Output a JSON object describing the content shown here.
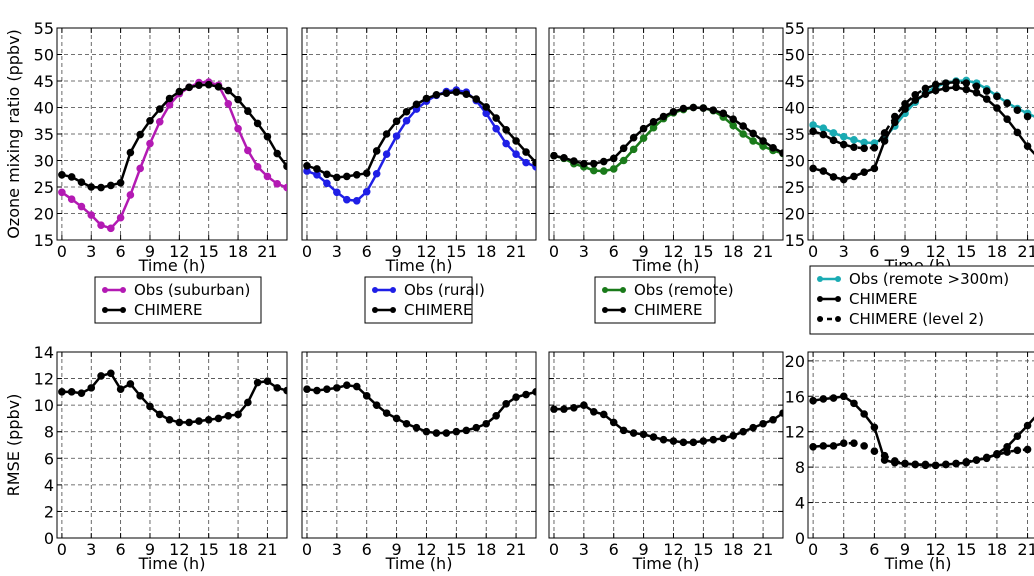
{
  "chart_data": [
    {
      "type": "line",
      "xlabel": "Time (h)",
      "ylabel": "Ozone mixing ratio (ppbv)",
      "xlim": [
        -0.5,
        23
      ],
      "ylim": [
        15,
        55
      ],
      "xticks": [
        0,
        3,
        6,
        9,
        12,
        15,
        18,
        21
      ],
      "yticks": [
        15,
        20,
        25,
        30,
        35,
        40,
        45,
        50,
        55
      ],
      "grid": true,
      "legend": "below",
      "series": [
        {
          "name": "Obs (suburban)",
          "color": "#b31ab3",
          "style": "solid",
          "x": [
            0,
            1,
            2,
            3,
            4,
            5,
            6,
            7,
            8,
            9,
            10,
            11,
            12,
            13,
            14,
            15,
            16,
            17,
            18,
            19,
            20,
            21,
            22,
            23
          ],
          "values": [
            24,
            22.7,
            21.3,
            19.7,
            17.8,
            17.2,
            19.2,
            23.5,
            28.5,
            33.2,
            37.3,
            40.5,
            42.6,
            43.8,
            44.7,
            44.8,
            44.2,
            40.7,
            36,
            31.9,
            28.8,
            27,
            25.6,
            24.9
          ]
        },
        {
          "name": "CHIMERE",
          "color": "#000000",
          "style": "solid",
          "x": [
            0,
            1,
            2,
            3,
            4,
            5,
            6,
            7,
            8,
            9,
            10,
            11,
            12,
            13,
            14,
            15,
            16,
            17,
            18,
            19,
            20,
            21,
            22,
            23
          ],
          "values": [
            27.3,
            26.9,
            25.9,
            25,
            24.9,
            25.3,
            25.8,
            31.5,
            34.9,
            37.5,
            39.7,
            41.7,
            43,
            43.8,
            44.2,
            44.3,
            43.9,
            43.2,
            41.5,
            39.3,
            37,
            34.5,
            31.3,
            28.9
          ]
        }
      ]
    },
    {
      "type": "line",
      "xlabel": "Time (h)",
      "ylabel": "",
      "xlim": [
        -0.5,
        23
      ],
      "ylim": [
        15,
        55
      ],
      "xticks": [
        0,
        3,
        6,
        9,
        12,
        15,
        18,
        21
      ],
      "grid": true,
      "legend": "below",
      "series": [
        {
          "name": "Obs (rural)",
          "color": "#1f1fe6",
          "style": "solid",
          "x": [
            0,
            1,
            2,
            3,
            4,
            5,
            6,
            7,
            8,
            9,
            10,
            11,
            12,
            13,
            14,
            15,
            16,
            17,
            18,
            19,
            20,
            21,
            22,
            23
          ],
          "values": [
            28,
            27.3,
            25.7,
            24,
            22.6,
            22.4,
            24.1,
            27.5,
            31.2,
            34.6,
            37.5,
            39.7,
            41.2,
            42.3,
            43,
            43.3,
            42.9,
            41.3,
            38.9,
            36,
            33.2,
            31.2,
            29.6,
            28.8
          ]
        },
        {
          "name": "CHIMERE",
          "color": "#000000",
          "style": "solid",
          "x": [
            0,
            1,
            2,
            3,
            4,
            5,
            6,
            7,
            8,
            9,
            10,
            11,
            12,
            13,
            14,
            15,
            16,
            17,
            18,
            19,
            20,
            21,
            22,
            23
          ],
          "values": [
            29,
            28.4,
            27.4,
            26.8,
            27,
            27.3,
            27.6,
            31.8,
            35,
            37.4,
            39.2,
            40.6,
            41.7,
            42.4,
            42.7,
            42.9,
            42.5,
            41.6,
            40.1,
            38,
            35.8,
            33.7,
            31.6,
            29.6
          ]
        }
      ]
    },
    {
      "type": "line",
      "xlabel": "Time (h)",
      "ylabel": "",
      "xlim": [
        -0.5,
        23
      ],
      "ylim": [
        15,
        55
      ],
      "xticks": [
        0,
        3,
        6,
        9,
        12,
        15,
        18,
        21
      ],
      "grid": true,
      "legend": "below",
      "series": [
        {
          "name": "Obs (remote)",
          "color": "#1a7a1a",
          "style": "solid",
          "x": [
            0,
            1,
            2,
            3,
            4,
            5,
            6,
            7,
            8,
            9,
            10,
            11,
            12,
            13,
            14,
            15,
            16,
            17,
            18,
            19,
            20,
            21,
            22,
            23
          ],
          "values": [
            30.9,
            30.4,
            29.4,
            28.8,
            28.1,
            28,
            28.4,
            30,
            32.1,
            34.2,
            36.2,
            37.9,
            39,
            39.6,
            40,
            39.9,
            39.4,
            38.2,
            36.6,
            35,
            33.7,
            32.7,
            31.9,
            31.3
          ]
        },
        {
          "name": "CHIMERE",
          "color": "#000000",
          "style": "solid",
          "x": [
            0,
            1,
            2,
            3,
            4,
            5,
            6,
            7,
            8,
            9,
            10,
            11,
            12,
            13,
            14,
            15,
            16,
            17,
            18,
            19,
            20,
            21,
            22,
            23
          ],
          "values": [
            30.9,
            30.5,
            29.9,
            29.4,
            29.4,
            29.8,
            30.4,
            32.3,
            34.3,
            36,
            37.3,
            38.3,
            39.2,
            39.8,
            40,
            39.9,
            39.5,
            38.9,
            37.8,
            36.5,
            35.1,
            33.7,
            32.4,
            31.4
          ]
        }
      ]
    },
    {
      "type": "line",
      "xlabel": "Time (h)",
      "ylabel": "",
      "xlim": [
        -0.5,
        23
      ],
      "ylim": [
        15,
        55
      ],
      "xticks": [
        0,
        3,
        6,
        9,
        12,
        15,
        18,
        21
      ],
      "yticks": [
        15,
        20,
        25,
        30,
        35,
        40,
        45,
        50,
        55
      ],
      "grid": true,
      "legend": "below",
      "series": [
        {
          "name": "Obs (remote >300m)",
          "color": "#1aabb3",
          "style": "solid",
          "x": [
            0,
            1,
            2,
            3,
            4,
            5,
            6,
            7,
            8,
            9,
            10,
            11,
            12,
            13,
            14,
            15,
            16,
            17,
            18,
            19,
            20,
            21,
            22,
            23
          ],
          "values": [
            36.7,
            36.1,
            35.2,
            34.5,
            33.9,
            33.4,
            33.3,
            34.3,
            36.5,
            38.9,
            41,
            42.7,
            43.9,
            44.6,
            45,
            45.1,
            44.6,
            43.5,
            42.2,
            40.9,
            39.8,
            38.9,
            38,
            37.2
          ]
        },
        {
          "name": "CHIMERE",
          "color": "#000000",
          "style": "solid",
          "x": [
            0,
            1,
            2,
            3,
            4,
            5,
            6,
            7,
            8,
            9,
            10,
            11,
            12,
            13,
            14,
            15,
            16,
            17,
            18,
            19,
            20,
            21,
            22,
            23
          ],
          "values": [
            28.5,
            28,
            26.9,
            26.4,
            27,
            27.8,
            28.5,
            33.7,
            37.2,
            39.7,
            41.4,
            42.5,
            43.2,
            43.6,
            43.8,
            43.4,
            42.8,
            41.6,
            39.9,
            37.8,
            35.3,
            32.7,
            30.6,
            29.2
          ]
        },
        {
          "name": "CHIMERE (level 2)",
          "color": "#000000",
          "style": "dashed",
          "x": [
            0,
            1,
            2,
            3,
            4,
            5,
            6,
            7,
            8,
            9,
            10,
            11,
            12,
            13,
            14,
            15,
            16,
            17,
            18,
            19,
            20,
            21,
            22,
            23
          ],
          "values": [
            35.5,
            34.9,
            33.8,
            33,
            32.5,
            32.3,
            32.4,
            35.2,
            38.3,
            40.7,
            42.4,
            43.6,
            44.3,
            44.6,
            44.8,
            44.6,
            44,
            43.1,
            42.1,
            40.8,
            39.5,
            38.3,
            37.3,
            36.5
          ]
        }
      ]
    },
    {
      "type": "line",
      "xlabel": "Time (h)",
      "ylabel": "RMSE (ppbv)",
      "xlim": [
        -0.5,
        23
      ],
      "ylim": [
        0,
        14
      ],
      "xticks": [
        0,
        3,
        6,
        9,
        12,
        15,
        18,
        21
      ],
      "yticks": [
        0,
        2,
        4,
        6,
        8,
        10,
        12,
        14
      ],
      "grid": true,
      "series": [
        {
          "name": "",
          "color": "#000000",
          "style": "solid",
          "x": [
            0,
            1,
            2,
            3,
            4,
            5,
            6,
            7,
            8,
            9,
            10,
            11,
            12,
            13,
            14,
            15,
            16,
            17,
            18,
            19,
            20,
            21,
            22,
            23
          ],
          "values": [
            11,
            11,
            10.9,
            11.3,
            12.2,
            12.4,
            11.2,
            11.6,
            10.7,
            9.9,
            9.3,
            8.9,
            8.7,
            8.7,
            8.8,
            8.9,
            9,
            9.2,
            9.3,
            10.2,
            11.7,
            11.8,
            11.3,
            11.1
          ]
        }
      ]
    },
    {
      "type": "line",
      "xlabel": "Time (h)",
      "ylabel": "",
      "xlim": [
        -0.5,
        23
      ],
      "ylim": [
        0,
        14
      ],
      "xticks": [
        0,
        3,
        6,
        9,
        12,
        15,
        18,
        21
      ],
      "grid": true,
      "series": [
        {
          "name": "",
          "color": "#000000",
          "style": "solid",
          "x": [
            0,
            1,
            2,
            3,
            4,
            5,
            6,
            7,
            8,
            9,
            10,
            11,
            12,
            13,
            14,
            15,
            16,
            17,
            18,
            19,
            20,
            21,
            22,
            23
          ],
          "values": [
            11.2,
            11.1,
            11.2,
            11.3,
            11.5,
            11.4,
            10.7,
            10,
            9.4,
            9,
            8.6,
            8.3,
            8,
            7.9,
            7.9,
            8,
            8.1,
            8.3,
            8.6,
            9.2,
            10.1,
            10.6,
            10.8,
            11
          ]
        }
      ]
    },
    {
      "type": "line",
      "xlabel": "Time (h)",
      "ylabel": "",
      "xlim": [
        -0.5,
        23
      ],
      "ylim": [
        0,
        14
      ],
      "xticks": [
        0,
        3,
        6,
        9,
        12,
        15,
        18,
        21
      ],
      "grid": true,
      "series": [
        {
          "name": "",
          "color": "#000000",
          "style": "solid",
          "x": [
            0,
            1,
            2,
            3,
            4,
            5,
            6,
            7,
            8,
            9,
            10,
            11,
            12,
            13,
            14,
            15,
            16,
            17,
            18,
            19,
            20,
            21,
            22,
            23
          ],
          "values": [
            9.7,
            9.7,
            9.8,
            10,
            9.5,
            9.3,
            8.7,
            8.1,
            7.9,
            7.8,
            7.6,
            7.4,
            7.3,
            7.2,
            7.2,
            7.3,
            7.4,
            7.5,
            7.7,
            8,
            8.3,
            8.6,
            8.9,
            9.4
          ]
        }
      ]
    },
    {
      "type": "line",
      "xlabel": "Time (h)",
      "ylabel": "",
      "xlim": [
        -0.5,
        23
      ],
      "ylim": [
        0,
        21
      ],
      "xticks": [
        0,
        3,
        6,
        9,
        12,
        15,
        18,
        21
      ],
      "yticks": [
        0,
        4,
        8,
        12,
        16,
        20
      ],
      "grid": true,
      "series": [
        {
          "name": "",
          "color": "#000000",
          "style": "solid",
          "x": [
            0,
            1,
            2,
            3,
            4,
            5,
            6,
            7,
            8,
            9,
            10,
            11,
            12,
            13,
            14,
            15,
            16,
            17,
            18,
            19,
            20,
            21,
            22,
            23
          ],
          "values": [
            15.5,
            15.7,
            15.8,
            16,
            15.2,
            14,
            12.5,
            8.8,
            8.5,
            8.4,
            8.3,
            8.2,
            8.2,
            8.3,
            8.4,
            8.5,
            8.8,
            9,
            9.5,
            10.3,
            11.5,
            12.7,
            14,
            15.2
          ]
        },
        {
          "name": "",
          "color": "#000000",
          "style": "dashed",
          "x": [
            0,
            1,
            2,
            3,
            4,
            5,
            6,
            7,
            8,
            9,
            10,
            11,
            12,
            13,
            14,
            15,
            16,
            17,
            18,
            19,
            20,
            21,
            22,
            23
          ],
          "values": [
            10.3,
            10.4,
            10.4,
            10.7,
            10.7,
            10.4,
            9.8,
            9.3,
            8.7,
            8.4,
            8.3,
            8.3,
            8.2,
            8.3,
            8.4,
            8.6,
            8.8,
            9.1,
            9.4,
            9.7,
            9.9,
            10,
            10.1,
            10.2
          ]
        }
      ]
    }
  ]
}
